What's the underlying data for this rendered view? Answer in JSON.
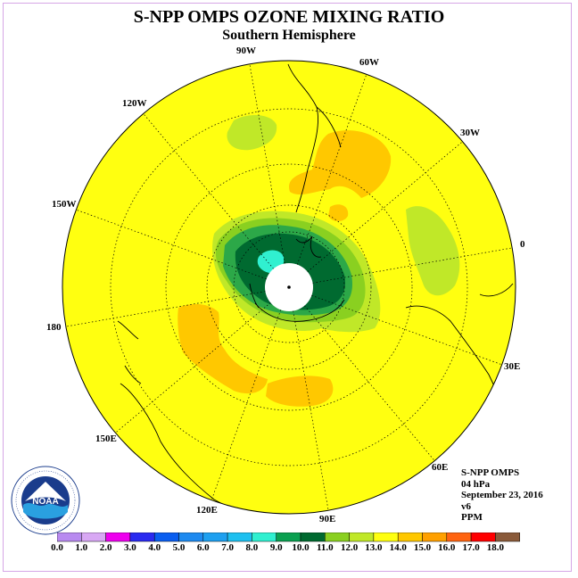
{
  "title": "S-NPP OMPS OZONE MIXING RATIO",
  "subtitle": "Southern Hemisphere",
  "longitude_labels": [
    "90W",
    "60W",
    "30W",
    "0",
    "30E",
    "60E",
    "90E",
    "120E",
    "150E",
    "180",
    "150W",
    "120W"
  ],
  "info": {
    "instrument": "S-NPP OMPS",
    "level": "04 hPa",
    "date": "September 23, 2016",
    "version": "v6",
    "units": "PPM"
  },
  "colorbar": {
    "ticks": [
      "0.0",
      "1.0",
      "2.0",
      "3.0",
      "4.0",
      "5.0",
      "6.0",
      "7.0",
      "8.0",
      "9.0",
      "10.0",
      "11.0",
      "12.0",
      "13.0",
      "14.0",
      "15.0",
      "16.0",
      "17.0",
      "18.0"
    ],
    "colors": [
      "#b88af0",
      "#d8a8f4",
      "#ee00ee",
      "#2a2af0",
      "#0a5ef0",
      "#1e8af0",
      "#1ea0f0",
      "#1ec0f0",
      "#30f0d0",
      "#0aa050",
      "#006a30",
      "#8ad020",
      "#c0e828",
      "#ffff10",
      "#ffc800",
      "#ffa000",
      "#ff6410",
      "#ff0000",
      "#8a5a3a"
    ]
  },
  "map_colors": {
    "background": "#ffff10",
    "orange": "#ffc800",
    "light_green": "#c0e828",
    "green": "#8ad020",
    "mid_green": "#2ca848",
    "dark_green": "#006a30",
    "cyan": "#30f0d0",
    "pole_hole": "#ffffff"
  },
  "logo": {
    "name": "NOAA",
    "ring_text": "NATIONAL OCEANIC AND ATMOSPHERIC ADMINISTRATION · U.S. DEPARTMENT OF COMMERCE"
  }
}
